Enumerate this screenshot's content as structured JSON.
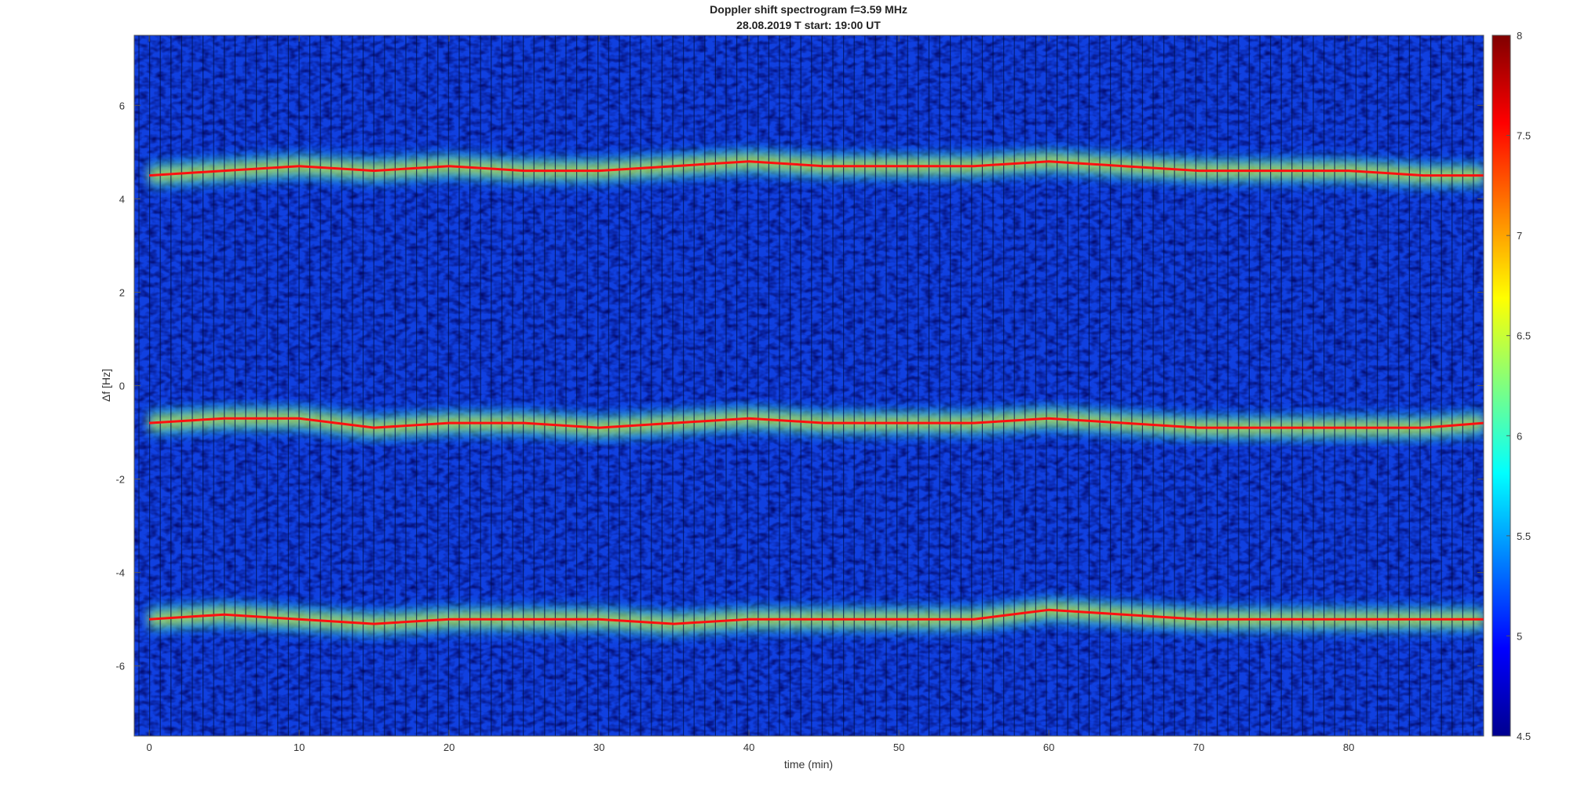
{
  "chart_data": {
    "type": "heatmap",
    "title": "Doppler shift spectrogram f=3.59 MHz",
    "subtitle": "28.08.2019   T start: 19:00 UT",
    "xlabel": "time (min)",
    "ylabel": "Δf [Hz]",
    "xlim": [
      -1,
      89
    ],
    "ylim": [
      -7.5,
      7.5
    ],
    "x_ticks": [
      0,
      10,
      20,
      30,
      40,
      50,
      60,
      70,
      80
    ],
    "y_ticks": [
      -6,
      -4,
      -2,
      0,
      2,
      4,
      6
    ],
    "colormap": "jet",
    "colorbar": {
      "range": [
        4.5,
        8
      ],
      "ticks": [
        4.5,
        5,
        5.5,
        6,
        6.5,
        7,
        7.5,
        8
      ]
    },
    "grid": false,
    "traces": [
      {
        "time": [
          0,
          5,
          10,
          15,
          20,
          25,
          30,
          35,
          40,
          45,
          50,
          55,
          60,
          65,
          70,
          75,
          80,
          85,
          89
        ],
        "doppler_hz": [
          4.5,
          4.6,
          4.7,
          4.6,
          4.7,
          4.6,
          4.6,
          4.7,
          4.8,
          4.7,
          4.7,
          4.7,
          4.8,
          4.7,
          4.6,
          4.6,
          4.6,
          4.5,
          4.5
        ]
      },
      {
        "time": [
          0,
          5,
          10,
          15,
          20,
          25,
          30,
          35,
          40,
          45,
          50,
          55,
          60,
          65,
          70,
          75,
          80,
          85,
          89
        ],
        "doppler_hz": [
          -0.8,
          -0.7,
          -0.7,
          -0.9,
          -0.8,
          -0.8,
          -0.9,
          -0.8,
          -0.7,
          -0.8,
          -0.8,
          -0.8,
          -0.7,
          -0.8,
          -0.9,
          -0.9,
          -0.9,
          -0.9,
          -0.8
        ]
      },
      {
        "time": [
          0,
          5,
          10,
          15,
          20,
          25,
          30,
          35,
          40,
          45,
          50,
          55,
          60,
          65,
          70,
          75,
          80,
          85,
          89
        ],
        "doppler_hz": [
          -5.0,
          -4.9,
          -5.0,
          -5.1,
          -5.0,
          -5.0,
          -5.0,
          -5.1,
          -5.0,
          -5.0,
          -5.0,
          -5.0,
          -4.8,
          -4.9,
          -5.0,
          -5.0,
          -5.0,
          -5.0,
          -5.0
        ]
      }
    ]
  }
}
